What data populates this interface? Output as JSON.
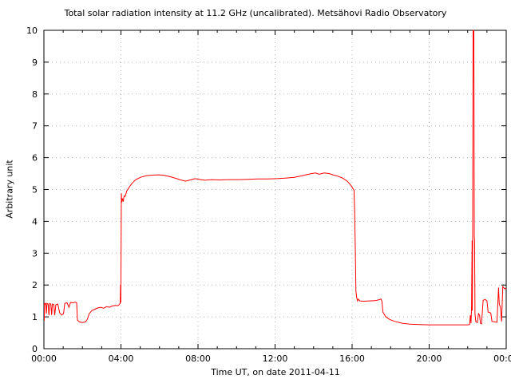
{
  "chart_data": {
    "type": "line",
    "title": "Total solar radiation intensity at 11.2 GHz (uncalibrated). Metsähovi Radio Observatory",
    "xlabel": "Time UT, on date 2011-04-11",
    "ylabel": "Arbitrary unit",
    "xlim": [
      0,
      24
    ],
    "ylim": [
      0,
      10
    ],
    "grid": "dotted",
    "grid_color": "#b5b5b5",
    "frame_color": "#000000",
    "x_ticks": [
      {
        "h": 0,
        "label": "00:00"
      },
      {
        "h": 4,
        "label": "04:00"
      },
      {
        "h": 8,
        "label": "08:00"
      },
      {
        "h": 12,
        "label": "12:00"
      },
      {
        "h": 16,
        "label": "16:00"
      },
      {
        "h": 20,
        "label": "20:00"
      },
      {
        "h": 24,
        "label": "00:00"
      }
    ],
    "x_minor_every_h": 1,
    "y_ticks": [
      {
        "v": 0,
        "label": "0"
      },
      {
        "v": 1,
        "label": "1"
      },
      {
        "v": 2,
        "label": "2"
      },
      {
        "v": 3,
        "label": "3"
      },
      {
        "v": 4,
        "label": "4"
      },
      {
        "v": 5,
        "label": "5"
      },
      {
        "v": 6,
        "label": "6"
      },
      {
        "v": 7,
        "label": "7"
      },
      {
        "v": 8,
        "label": "8"
      },
      {
        "v": 9,
        "label": "9"
      },
      {
        "v": 10,
        "label": "10"
      }
    ],
    "series": [
      {
        "name": "total-solar-radiation-11.2GHz",
        "color": "#ff0000",
        "points": [
          [
            0.0,
            1.4
          ],
          [
            0.02,
            0.88
          ],
          [
            0.03,
            1.42
          ],
          [
            0.06,
            1.4
          ],
          [
            0.1,
            1.42
          ],
          [
            0.13,
            1.1
          ],
          [
            0.16,
            1.42
          ],
          [
            0.22,
            1.4
          ],
          [
            0.26,
            1.05
          ],
          [
            0.3,
            1.42
          ],
          [
            0.36,
            1.4
          ],
          [
            0.4,
            1.06
          ],
          [
            0.44,
            1.4
          ],
          [
            0.52,
            1.38
          ],
          [
            0.56,
            1.05
          ],
          [
            0.62,
            1.38
          ],
          [
            0.72,
            1.4
          ],
          [
            0.82,
            1.12
          ],
          [
            0.92,
            1.06
          ],
          [
            1.02,
            1.1
          ],
          [
            1.08,
            1.42
          ],
          [
            1.2,
            1.44
          ],
          [
            1.3,
            1.3
          ],
          [
            1.38,
            1.45
          ],
          [
            1.52,
            1.44
          ],
          [
            1.62,
            1.46
          ],
          [
            1.7,
            1.44
          ],
          [
            1.74,
            0.9
          ],
          [
            1.85,
            0.84
          ],
          [
            2.0,
            0.82
          ],
          [
            2.15,
            0.84
          ],
          [
            2.25,
            0.92
          ],
          [
            2.35,
            1.1
          ],
          [
            2.5,
            1.2
          ],
          [
            2.65,
            1.24
          ],
          [
            2.8,
            1.28
          ],
          [
            2.95,
            1.3
          ],
          [
            3.1,
            1.27
          ],
          [
            3.25,
            1.32
          ],
          [
            3.4,
            1.3
          ],
          [
            3.55,
            1.34
          ],
          [
            3.7,
            1.36
          ],
          [
            3.85,
            1.35
          ],
          [
            3.93,
            1.4
          ],
          [
            3.96,
            1.42
          ],
          [
            3.98,
            2.0
          ],
          [
            3.99,
            1.45
          ],
          [
            4.02,
            4.88
          ],
          [
            4.04,
            4.6
          ],
          [
            4.08,
            4.72
          ],
          [
            4.12,
            4.62
          ],
          [
            4.16,
            4.8
          ],
          [
            4.22,
            4.78
          ],
          [
            4.3,
            4.95
          ],
          [
            4.4,
            5.05
          ],
          [
            4.55,
            5.18
          ],
          [
            4.75,
            5.3
          ],
          [
            5.0,
            5.38
          ],
          [
            5.3,
            5.43
          ],
          [
            5.6,
            5.45
          ],
          [
            5.9,
            5.46
          ],
          [
            6.2,
            5.45
          ],
          [
            6.5,
            5.41
          ],
          [
            6.8,
            5.36
          ],
          [
            7.1,
            5.3
          ],
          [
            7.35,
            5.26
          ],
          [
            7.6,
            5.3
          ],
          [
            7.85,
            5.34
          ],
          [
            8.05,
            5.32
          ],
          [
            8.35,
            5.29
          ],
          [
            8.7,
            5.31
          ],
          [
            9.1,
            5.3
          ],
          [
            9.6,
            5.31
          ],
          [
            10.1,
            5.31
          ],
          [
            10.6,
            5.32
          ],
          [
            11.1,
            5.33
          ],
          [
            11.6,
            5.33
          ],
          [
            12.1,
            5.34
          ],
          [
            12.6,
            5.36
          ],
          [
            13.0,
            5.38
          ],
          [
            13.3,
            5.42
          ],
          [
            13.6,
            5.46
          ],
          [
            13.9,
            5.5
          ],
          [
            14.1,
            5.52
          ],
          [
            14.3,
            5.48
          ],
          [
            14.55,
            5.52
          ],
          [
            14.8,
            5.5
          ],
          [
            15.0,
            5.46
          ],
          [
            15.25,
            5.42
          ],
          [
            15.5,
            5.36
          ],
          [
            15.75,
            5.26
          ],
          [
            15.95,
            5.12
          ],
          [
            16.05,
            5.02
          ],
          [
            16.1,
            4.98
          ],
          [
            16.13,
            4.4
          ],
          [
            16.17,
            3.0
          ],
          [
            16.2,
            1.8
          ],
          [
            16.24,
            1.6
          ],
          [
            16.28,
            1.5
          ],
          [
            16.32,
            1.56
          ],
          [
            16.4,
            1.5
          ],
          [
            16.6,
            1.49
          ],
          [
            16.9,
            1.5
          ],
          [
            17.2,
            1.51
          ],
          [
            17.4,
            1.54
          ],
          [
            17.5,
            1.56
          ],
          [
            17.55,
            1.48
          ],
          [
            17.6,
            1.15
          ],
          [
            17.75,
            1.0
          ],
          [
            17.95,
            0.92
          ],
          [
            18.2,
            0.86
          ],
          [
            18.6,
            0.8
          ],
          [
            19.0,
            0.77
          ],
          [
            19.5,
            0.76
          ],
          [
            20.0,
            0.75
          ],
          [
            20.5,
            0.75
          ],
          [
            21.0,
            0.75
          ],
          [
            21.5,
            0.75
          ],
          [
            22.0,
            0.75
          ],
          [
            22.1,
            0.76
          ],
          [
            22.14,
            1.05
          ],
          [
            22.17,
            0.8
          ],
          [
            22.2,
            1.3
          ],
          [
            22.23,
            3.4
          ],
          [
            22.24,
            1.2
          ],
          [
            22.26,
            3.5
          ],
          [
            22.28,
            10.0
          ],
          [
            22.32,
            10.0
          ],
          [
            22.34,
            3.5
          ],
          [
            22.36,
            3.4
          ],
          [
            22.38,
            1.1
          ],
          [
            22.42,
            0.85
          ],
          [
            22.5,
            0.82
          ],
          [
            22.56,
            1.1
          ],
          [
            22.62,
            1.05
          ],
          [
            22.66,
            0.8
          ],
          [
            22.72,
            0.78
          ],
          [
            22.8,
            1.52
          ],
          [
            22.9,
            1.55
          ],
          [
            23.0,
            1.5
          ],
          [
            23.06,
            1.15
          ],
          [
            23.2,
            1.12
          ],
          [
            23.26,
            0.86
          ],
          [
            23.42,
            0.84
          ],
          [
            23.52,
            0.83
          ],
          [
            23.6,
            1.92
          ],
          [
            23.64,
            1.4
          ],
          [
            23.7,
            1.3
          ],
          [
            23.76,
            0.85
          ],
          [
            23.82,
            1.95
          ],
          [
            23.92,
            1.88
          ],
          [
            24.0,
            1.9
          ]
        ]
      }
    ]
  }
}
